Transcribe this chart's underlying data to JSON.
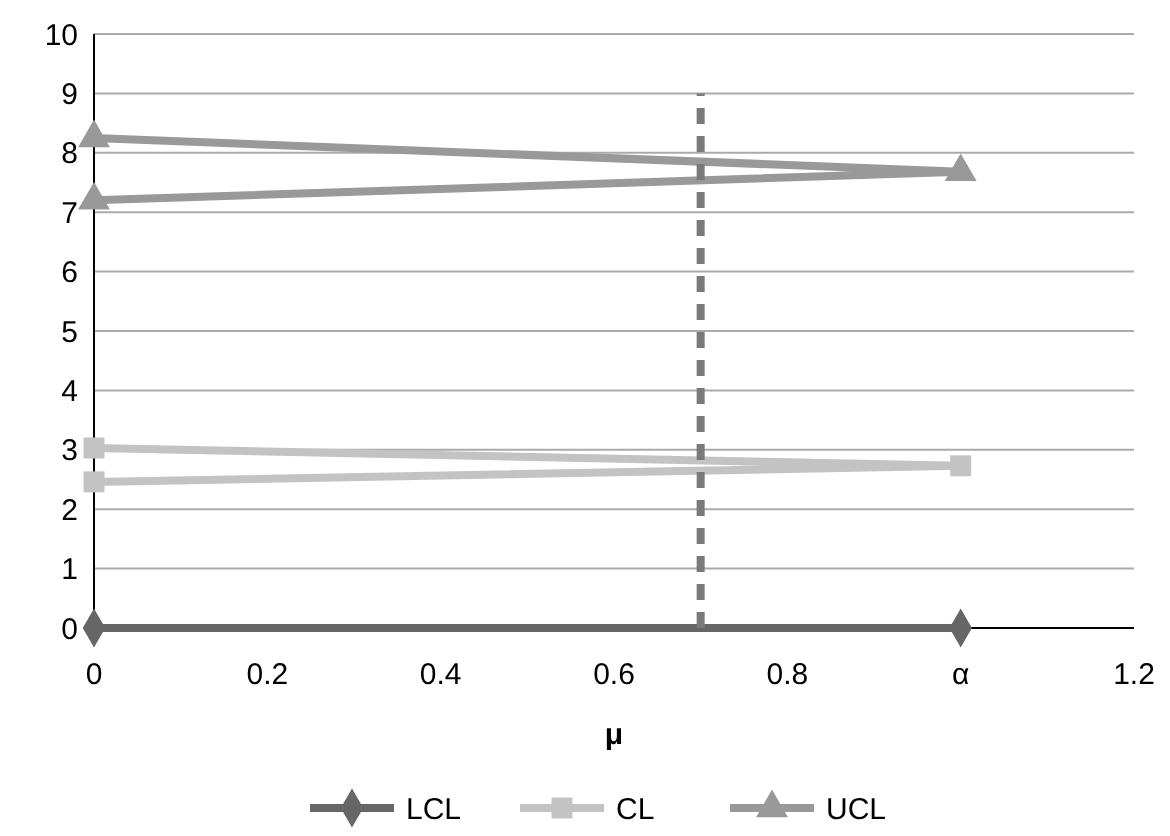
{
  "chart_data": {
    "type": "line",
    "xlabel": "μ",
    "xlim": [
      0,
      1.2
    ],
    "xticks": [
      0,
      0.2,
      0.4,
      0.6,
      0.8,
      {
        "value": 1,
        "label": "α"
      },
      1.2
    ],
    "ylim": [
      0,
      10
    ],
    "yticks": [
      0,
      1,
      2,
      3,
      4,
      5,
      6,
      7,
      8,
      9,
      10
    ],
    "grid": "y",
    "legend": "bottom",
    "series": [
      {
        "name": "LCL",
        "color": "#666666",
        "marker": "diamond",
        "x": [
          0,
          1
        ],
        "values": [
          0,
          0
        ]
      },
      {
        "name": "CL",
        "color": "#c3c3c3",
        "marker": "square",
        "x": [
          0,
          1,
          0
        ],
        "values": [
          3.03,
          2.73,
          2.46
        ]
      },
      {
        "name": "UCL",
        "color": "#999999",
        "marker": "triangle",
        "x": [
          0,
          1,
          0
        ],
        "values": [
          8.25,
          7.68,
          7.2
        ]
      },
      {
        "color": "#7a7a7a",
        "marker": "none",
        "line_style": "dashed",
        "x": [
          0.7,
          0.7
        ],
        "values": [
          0,
          9
        ]
      }
    ]
  }
}
